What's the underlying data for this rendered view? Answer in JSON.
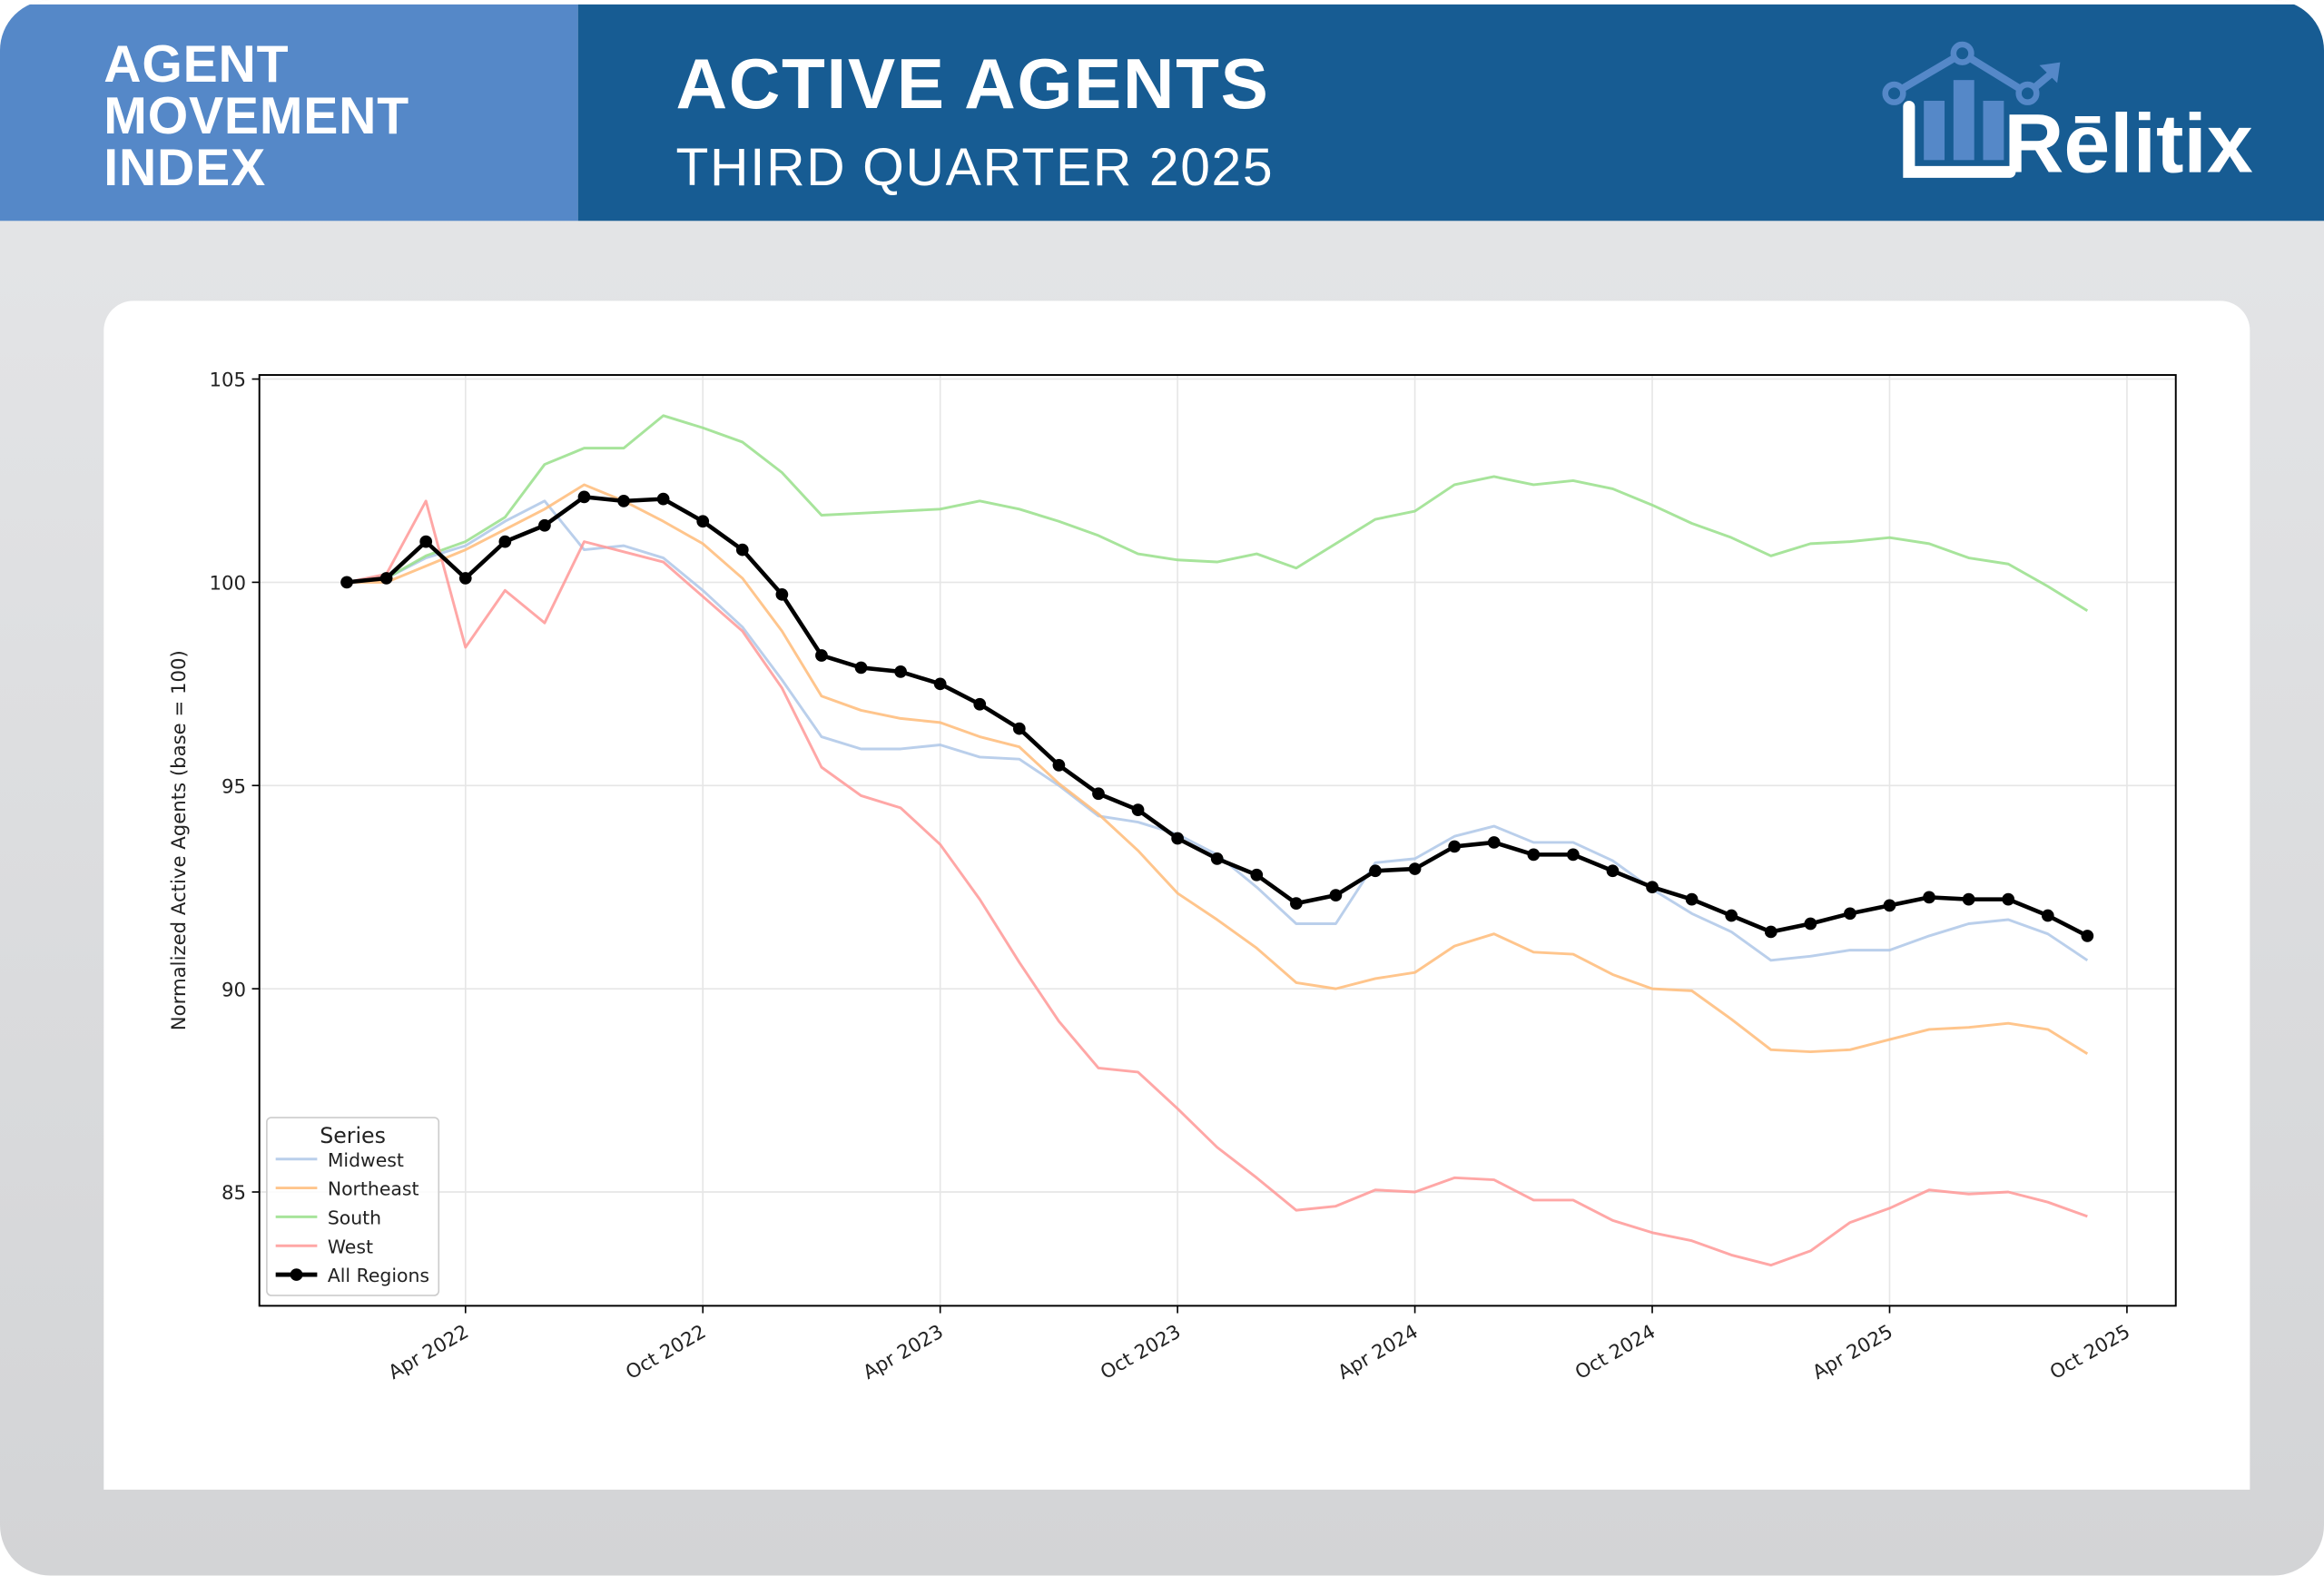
{
  "header": {
    "index_title": [
      "AGENT",
      "MOVEMENT",
      "INDEX"
    ],
    "title": "ACTIVE AGENTS",
    "subtitle": "THIRD QUARTER 2025",
    "logo_text": "Rēlitix"
  },
  "colors": {
    "header_left": "#5588c8",
    "header_right": "#175c93"
  },
  "chart_data": {
    "type": "line",
    "title": "",
    "xlabel": "",
    "ylabel": "Normalized Active Agents (base = 100)",
    "x_start": "2022-01",
    "x_frequency": "monthly",
    "x_ticks": [
      {
        "label": "Apr 2022",
        "index": 3
      },
      {
        "label": "Oct 2022",
        "index": 9
      },
      {
        "label": "Apr 2023",
        "index": 15
      },
      {
        "label": "Oct 2023",
        "index": 21
      },
      {
        "label": "Apr 2024",
        "index": 27
      },
      {
        "label": "Oct 2024",
        "index": 33
      },
      {
        "label": "Apr 2025",
        "index": 39
      },
      {
        "label": "Oct 2025",
        "index": 45
      }
    ],
    "y_ticks": [
      85,
      90,
      95,
      100,
      105
    ],
    "ylim": [
      82.2,
      105.1
    ],
    "grid": true,
    "legend": {
      "title": "Series",
      "placement": "lower-left"
    },
    "series": [
      {
        "name": "Midwest",
        "color": "#aec7e8",
        "values": [
          100,
          100.1,
          100.6,
          100.9,
          101.5,
          102.0,
          100.8,
          100.9,
          100.6,
          99.8,
          98.9,
          97.6,
          96.2,
          95.9,
          95.9,
          96.0,
          95.7,
          95.65,
          95.0,
          94.25,
          94.1,
          93.8,
          93.3,
          92.5,
          91.6,
          91.6,
          93.1,
          93.2,
          93.75,
          94.0,
          93.6,
          93.6,
          93.15,
          92.45,
          91.85,
          91.4,
          90.7,
          90.8,
          90.95,
          90.95,
          91.3,
          91.6,
          91.7,
          91.35,
          90.7
        ]
      },
      {
        "name": "Northeast",
        "color": "#ffbb78",
        "values": [
          100,
          100.0,
          100.4,
          100.8,
          101.3,
          101.8,
          102.4,
          102.0,
          101.5,
          100.95,
          100.1,
          98.8,
          97.2,
          96.85,
          96.65,
          96.55,
          96.2,
          95.95,
          95.05,
          94.3,
          93.4,
          92.35,
          91.7,
          91.0,
          90.15,
          90.0,
          90.25,
          90.4,
          91.05,
          91.35,
          90.9,
          90.85,
          90.35,
          90.0,
          89.95,
          89.25,
          88.5,
          88.45,
          88.5,
          88.75,
          89.0,
          89.05,
          89.15,
          89.0,
          88.4
        ]
      },
      {
        "name": "South",
        "color": "#98df8a",
        "values": [
          100,
          100.1,
          100.65,
          101.0,
          101.6,
          102.9,
          103.3,
          103.3,
          104.1,
          103.8,
          103.45,
          102.7,
          101.65,
          101.7,
          101.75,
          101.8,
          102.0,
          101.8,
          101.5,
          101.15,
          100.7,
          100.55,
          100.5,
          100.7,
          100.35,
          100.95,
          101.55,
          101.75,
          102.4,
          102.6,
          102.4,
          102.5,
          102.3,
          101.9,
          101.45,
          101.1,
          100.65,
          100.95,
          101.0,
          101.1,
          100.95,
          100.6,
          100.45,
          99.9,
          99.3
        ]
      },
      {
        "name": "West",
        "color": "#ff9896",
        "values": [
          100,
          100.2,
          102.0,
          98.4,
          99.8,
          99.0,
          101.0,
          100.75,
          100.5,
          99.65,
          98.8,
          97.4,
          95.45,
          94.75,
          94.45,
          93.55,
          92.2,
          90.65,
          89.2,
          88.05,
          87.95,
          87.05,
          86.1,
          85.35,
          84.55,
          84.65,
          85.05,
          85.0,
          85.35,
          85.3,
          84.8,
          84.8,
          84.3,
          84.0,
          83.8,
          83.45,
          83.2,
          83.55,
          84.25,
          84.6,
          85.05,
          84.95,
          85.0,
          84.75,
          84.4
        ]
      },
      {
        "name": "All Regions",
        "color": "#000000",
        "markers": true,
        "values": [
          100.0,
          100.1,
          101.0,
          100.1,
          101.0,
          101.4,
          102.1,
          102.0,
          102.05,
          101.5,
          100.8,
          99.7,
          98.2,
          97.9,
          97.8,
          97.5,
          97.0,
          96.4,
          95.5,
          94.8,
          94.4,
          93.7,
          93.2,
          92.8,
          92.1,
          92.3,
          92.9,
          92.95,
          93.5,
          93.6,
          93.3,
          93.3,
          92.9,
          92.5,
          92.2,
          91.8,
          91.4,
          91.6,
          91.85,
          92.05,
          92.25,
          92.2,
          92.2,
          91.8,
          91.3
        ]
      }
    ]
  }
}
